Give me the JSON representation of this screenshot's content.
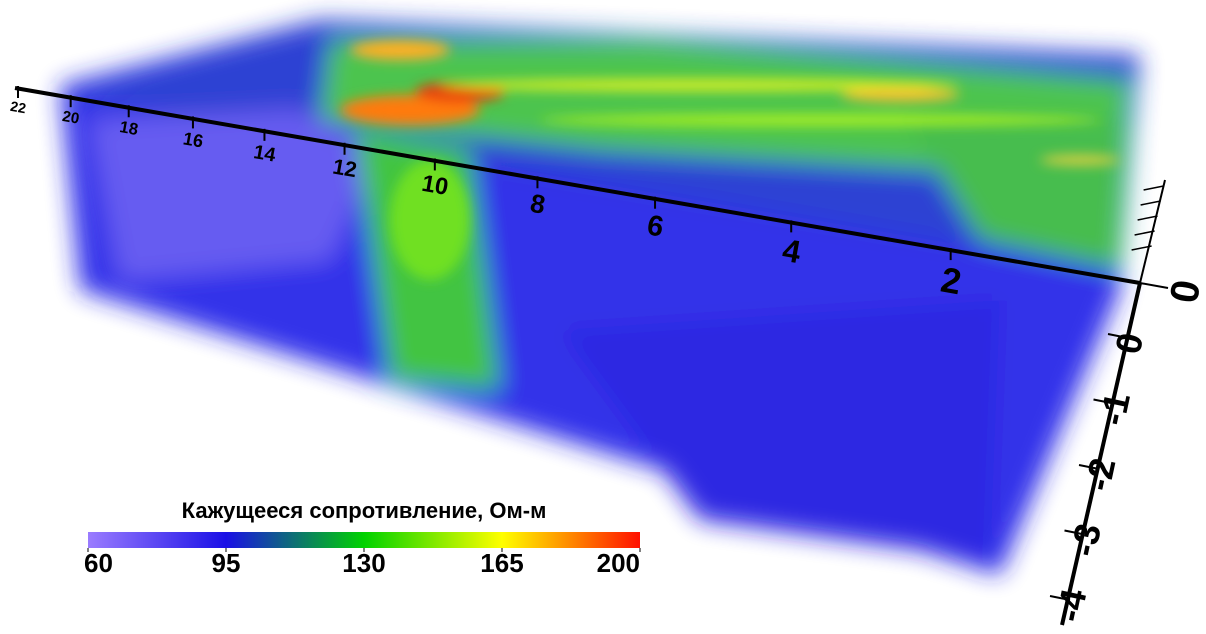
{
  "chart_data": {
    "type": "volume3d",
    "colorbar": {
      "title": "Кажущееся  сопротивление,  Ом-м",
      "lim": [
        60,
        200
      ],
      "ticks": [
        60,
        95,
        130,
        165,
        200
      ],
      "colors": [
        "#9a7cff",
        "#1a10e6",
        "#00d200",
        "#ffff00",
        "#ff1000"
      ]
    },
    "xlim": [
      22,
      0
    ],
    "xticks": [
      22,
      20,
      18,
      16,
      14,
      12,
      10,
      8,
      6,
      4,
      2
    ],
    "yticks": [
      0
    ],
    "zlim": [
      -4,
      0
    ],
    "zticks": [
      0,
      -1,
      -2,
      -3,
      -4
    ]
  }
}
